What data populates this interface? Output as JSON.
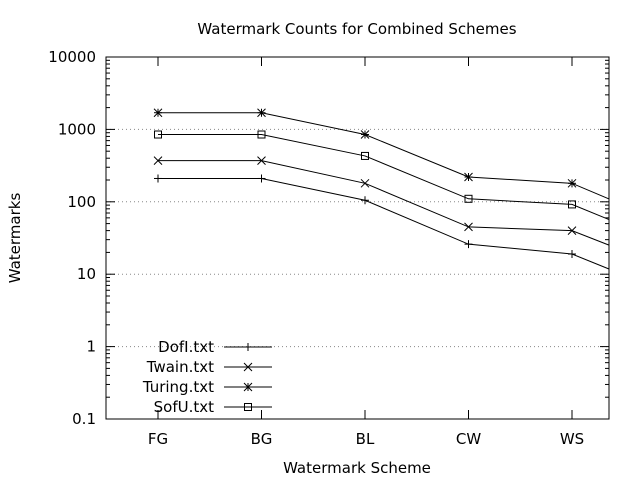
{
  "chart_data": {
    "type": "line",
    "title": "Watermark Counts for Combined Schemes",
    "xlabel": "Watermark Scheme",
    "ylabel": "Watermarks",
    "categories": [
      "FG",
      "BG",
      "BL",
      "CW",
      "WS"
    ],
    "y_scale": "log",
    "ylim": [
      0.1,
      10000
    ],
    "y_ticks": [
      "0.1",
      "1",
      "10",
      "100",
      "1000",
      "10000"
    ],
    "grid": true,
    "legend_position": "bottom-left",
    "series": [
      {
        "name": "DofI.txt",
        "marker": "plus",
        "values": [
          210,
          210,
          105,
          26,
          19
        ],
        "tail": 5
      },
      {
        "name": "Twain.txt",
        "marker": "cross",
        "values": [
          370,
          370,
          180,
          45,
          40
        ],
        "tail": 11
      },
      {
        "name": "Turing.txt",
        "marker": "asterisk",
        "values": [
          1700,
          1700,
          850,
          220,
          180
        ],
        "tail": 45
      },
      {
        "name": "SofU.txt",
        "marker": "square",
        "values": [
          850,
          850,
          430,
          110,
          92
        ],
        "tail": 24
      }
    ]
  }
}
